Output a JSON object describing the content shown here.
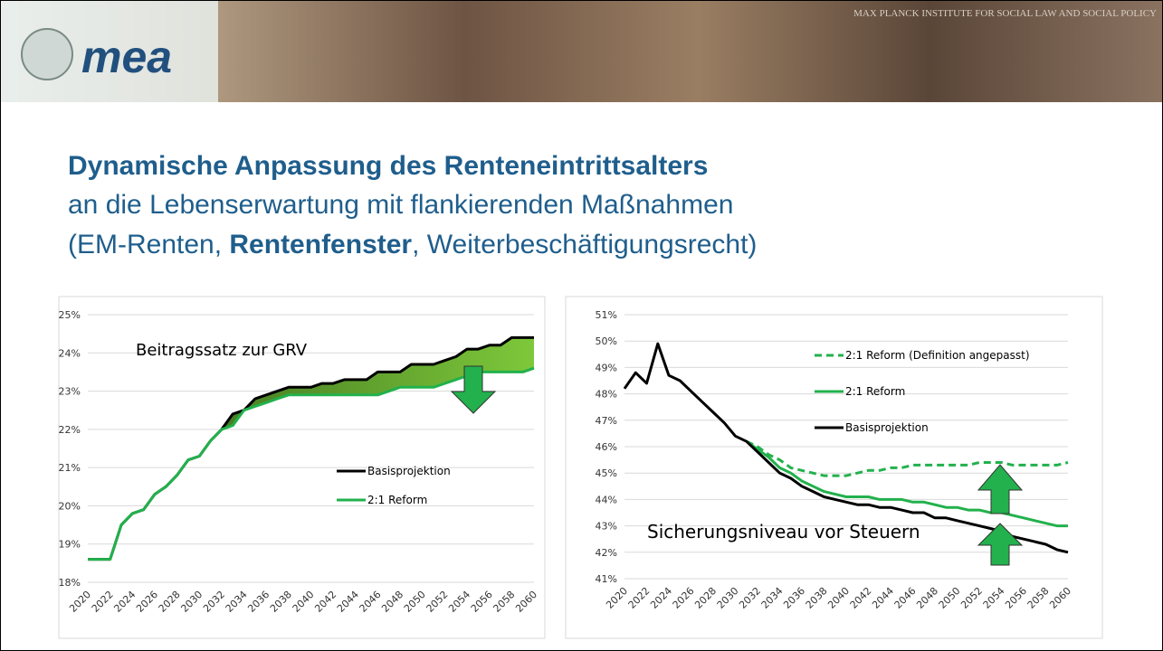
{
  "header": {
    "logo": "mea",
    "institute": "MAX PLANCK INSTITUTE FOR SOCIAL LAW AND SOCIAL POLICY"
  },
  "title": {
    "line1": "Dynamische Anpassung des Renteneintrittsalters",
    "line2": "an die Lebenserwartung mit flankierenden Maßnahmen",
    "line3_start": "(EM-Renten, ",
    "line3_bold": "Rentenfenster",
    "line3_end": ", Weiterbeschäftigungsrecht)"
  },
  "chart_data": [
    {
      "type": "line",
      "annotation": "Beitragssatz zur GRV",
      "fill_between": true,
      "grid": true,
      "categories": [
        "2020",
        null,
        "2022",
        null,
        "2024",
        null,
        "2026",
        null,
        "2028",
        null,
        "2030",
        null,
        "2032",
        null,
        "2034",
        null,
        "2036",
        null,
        "2038",
        null,
        "2040",
        null,
        "2042",
        null,
        "2044",
        null,
        "2046",
        null,
        "2048",
        null,
        "2050",
        null,
        "2052",
        null,
        "2054",
        null,
        "2056",
        null,
        "2058",
        null,
        "2060"
      ],
      "ylim": [
        18,
        25
      ],
      "yticks": [
        {
          "value": 18,
          "label": "18%"
        },
        {
          "value": 19,
          "label": "19%"
        },
        {
          "value": 20,
          "label": "20%"
        },
        {
          "value": 21,
          "label": "21%"
        },
        {
          "value": 22,
          "label": "22%"
        },
        {
          "value": 23,
          "label": "23%"
        },
        {
          "value": 24,
          "label": "24%"
        },
        {
          "value": 25,
          "label": "25%"
        }
      ],
      "series": [
        {
          "name": "Basisprojektion",
          "color": "#000000",
          "values": [
            18.6,
            18.6,
            18.6,
            19.5,
            19.8,
            19.9,
            20.3,
            20.5,
            20.8,
            21.2,
            21.3,
            21.7,
            22.0,
            22.4,
            22.5,
            22.8,
            22.9,
            23.0,
            23.1,
            23.1,
            23.1,
            23.2,
            23.2,
            23.3,
            23.3,
            23.3,
            23.5,
            23.5,
            23.5,
            23.7,
            23.7,
            23.7,
            23.8,
            23.9,
            24.1,
            24.1,
            24.2,
            24.2,
            24.4,
            24.4,
            24.4
          ]
        },
        {
          "name": "2:1 Reform",
          "color": "#22b14c",
          "values": [
            18.6,
            18.6,
            18.6,
            19.5,
            19.8,
            19.9,
            20.3,
            20.5,
            20.8,
            21.2,
            21.3,
            21.7,
            22.0,
            22.1,
            22.5,
            22.6,
            22.7,
            22.8,
            22.9,
            22.9,
            22.9,
            22.9,
            22.9,
            22.9,
            22.9,
            22.9,
            22.9,
            23.0,
            23.1,
            23.1,
            23.1,
            23.1,
            23.2,
            23.3,
            23.4,
            23.5,
            23.5,
            23.5,
            23.5,
            23.5,
            23.6
          ]
        }
      ]
    },
    {
      "type": "line",
      "annotation": "Sicherungsniveau vor Steuern",
      "grid": true,
      "categories": [
        "2020",
        null,
        "2022",
        null,
        "2024",
        null,
        "2026",
        null,
        "2028",
        null,
        "2030",
        null,
        "2032",
        null,
        "2034",
        null,
        "2036",
        null,
        "2038",
        null,
        "2040",
        null,
        "2042",
        null,
        "2044",
        null,
        "2046",
        null,
        "2048",
        null,
        "2050",
        null,
        "2052",
        null,
        "2054",
        null,
        "2056",
        null,
        "2058",
        null,
        "2060"
      ],
      "ylim": [
        41,
        51
      ],
      "yticks": [
        {
          "value": 41,
          "label": "41%"
        },
        {
          "value": 42,
          "label": "42%"
        },
        {
          "value": 43,
          "label": "43%"
        },
        {
          "value": 44,
          "label": "44%"
        },
        {
          "value": 45,
          "label": "45%"
        },
        {
          "value": 46,
          "label": "46%"
        },
        {
          "value": 47,
          "label": "47%"
        },
        {
          "value": 48,
          "label": "48%"
        },
        {
          "value": 49,
          "label": "49%"
        },
        {
          "value": 50,
          "label": "50%"
        },
        {
          "value": 51,
          "label": "51%"
        }
      ],
      "series": [
        {
          "name": "2:1 Reform (Definition angepasst)",
          "color": "#22b14c",
          "dashed": true,
          "values": [
            null,
            null,
            null,
            null,
            null,
            null,
            null,
            null,
            null,
            null,
            null,
            46.2,
            46.0,
            45.7,
            45.5,
            45.2,
            45.1,
            45.0,
            44.9,
            44.9,
            44.9,
            45.0,
            45.1,
            45.1,
            45.2,
            45.2,
            45.3,
            45.3,
            45.3,
            45.3,
            45.3,
            45.3,
            45.4,
            45.4,
            45.4,
            45.3,
            45.3,
            45.3,
            45.3,
            45.3,
            45.4
          ]
        },
        {
          "name": "2:1 Reform",
          "color": "#22b14c",
          "values": [
            null,
            null,
            null,
            null,
            null,
            null,
            null,
            null,
            null,
            null,
            null,
            46.2,
            45.9,
            45.6,
            45.2,
            45.0,
            44.7,
            44.5,
            44.3,
            44.2,
            44.1,
            44.1,
            44.1,
            44.0,
            44.0,
            44.0,
            43.9,
            43.9,
            43.8,
            43.7,
            43.7,
            43.6,
            43.6,
            43.5,
            43.5,
            43.4,
            43.3,
            43.2,
            43.1,
            43.0,
            43.0
          ]
        },
        {
          "name": "Basisprojektion",
          "color": "#000000",
          "values": [
            48.2,
            48.8,
            48.4,
            49.9,
            48.7,
            48.5,
            48.1,
            47.7,
            47.3,
            46.9,
            46.4,
            46.2,
            45.8,
            45.4,
            45.0,
            44.8,
            44.5,
            44.3,
            44.1,
            44.0,
            43.9,
            43.8,
            43.8,
            43.7,
            43.7,
            43.6,
            43.5,
            43.5,
            43.3,
            43.3,
            43.2,
            43.1,
            43.0,
            42.9,
            42.8,
            42.6,
            42.5,
            42.4,
            42.3,
            42.1,
            42.0
          ]
        }
      ]
    }
  ]
}
